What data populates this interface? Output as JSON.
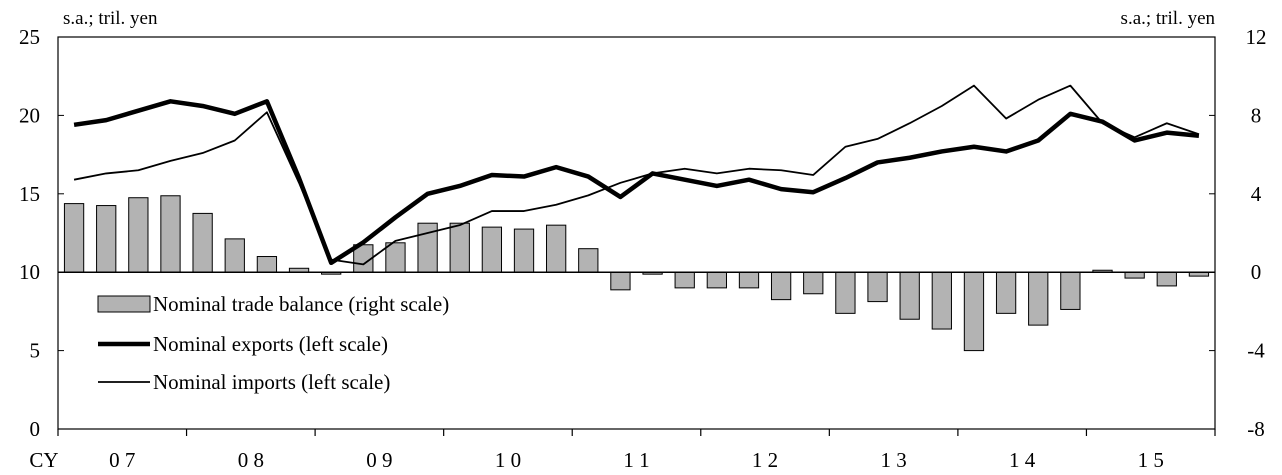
{
  "chart_data": {
    "type": "bar+line",
    "left_unit": "s.a.; tril. yen",
    "right_unit": "s.a.; tril. yen",
    "left_axis": {
      "min": 0,
      "max": 25,
      "ticks": [
        "0",
        "5",
        "10",
        "15",
        "20",
        "25"
      ]
    },
    "right_axis": {
      "min": -8,
      "max": 12,
      "ticks": [
        "-8",
        "-4",
        "0",
        "4",
        "8",
        "12"
      ]
    },
    "x_prefix": "CY",
    "year_labels": [
      "0 7",
      "0 8",
      "0 9",
      "1 0",
      "1 1",
      "1 2",
      "1 3",
      "1 4",
      "1 5"
    ],
    "quarters_per_year": 4,
    "legend": [
      {
        "label": "Nominal trade balance (right scale)",
        "kind": "bar"
      },
      {
        "label": "Nominal exports (left scale)",
        "kind": "thick-line"
      },
      {
        "label": "Nominal imports (left scale)",
        "kind": "thin-line"
      }
    ],
    "colors": {
      "bar_fill": "#b3b3b3",
      "line": "#000000"
    },
    "series": [
      {
        "name": "Nominal trade balance (right scale)",
        "axis": "right",
        "values": [
          3.5,
          3.4,
          3.8,
          3.9,
          3.0,
          1.7,
          0.8,
          0.2,
          -0.1,
          1.4,
          1.5,
          2.5,
          2.5,
          2.3,
          2.2,
          2.4,
          1.2,
          -0.9,
          -0.1,
          -0.8,
          -0.8,
          -0.8,
          -1.4,
          -1.1,
          -2.1,
          -1.5,
          -2.4,
          -2.9,
          -4.0,
          -2.1,
          -2.7,
          -1.9,
          0.1,
          -0.3,
          -0.7,
          -0.2
        ]
      },
      {
        "name": "Nominal exports (left scale)",
        "axis": "left",
        "values": [
          19.4,
          19.7,
          20.3,
          20.9,
          20.6,
          20.1,
          20.9,
          16.0,
          10.6,
          11.9,
          13.5,
          15.0,
          15.5,
          16.2,
          16.1,
          16.7,
          16.1,
          14.8,
          16.3,
          15.9,
          15.5,
          15.9,
          15.3,
          15.1,
          16.0,
          17.0,
          17.3,
          17.7,
          18.0,
          17.7,
          18.4,
          20.1,
          19.6,
          18.4,
          18.9,
          18.7
        ]
      },
      {
        "name": "Nominal imports (left scale)",
        "axis": "left",
        "values": [
          15.9,
          16.3,
          16.5,
          17.1,
          17.6,
          18.4,
          20.2,
          15.7,
          10.8,
          10.5,
          12.0,
          12.5,
          13.0,
          13.9,
          13.9,
          14.3,
          14.9,
          15.7,
          16.3,
          16.6,
          16.3,
          16.6,
          16.5,
          16.2,
          18.0,
          18.5,
          19.5,
          20.6,
          21.9,
          19.8,
          21.0,
          21.9,
          19.5,
          18.6,
          19.5,
          18.8
        ]
      }
    ]
  }
}
